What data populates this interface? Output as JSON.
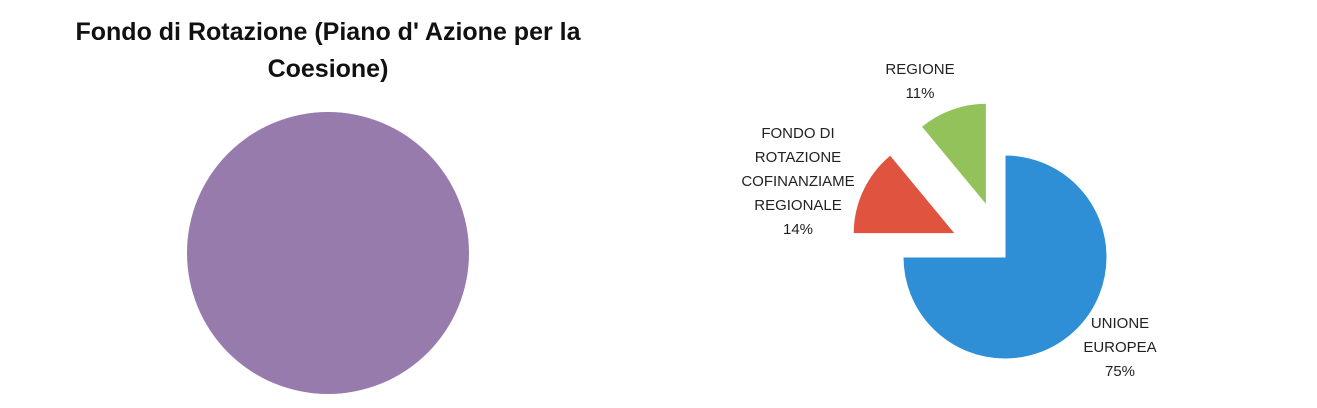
{
  "chart_data": [
    {
      "type": "pie",
      "title": "Fondo di Rotazione (Piano d' Azione per la Coesione)",
      "values": [
        100
      ],
      "colors": [
        "#977bad"
      ]
    },
    {
      "type": "pie",
      "categories": [
        "UNIONE EUROPEA",
        "FONDO DI ROTAZIONE COFINANZIAME REGIONALE",
        "REGIONE"
      ],
      "values": [
        75,
        14,
        11
      ],
      "value_labels": [
        "75%",
        "14%",
        "11%"
      ],
      "colors": [
        "#2e8fd6",
        "#e0533f",
        "#94c25a"
      ]
    }
  ]
}
